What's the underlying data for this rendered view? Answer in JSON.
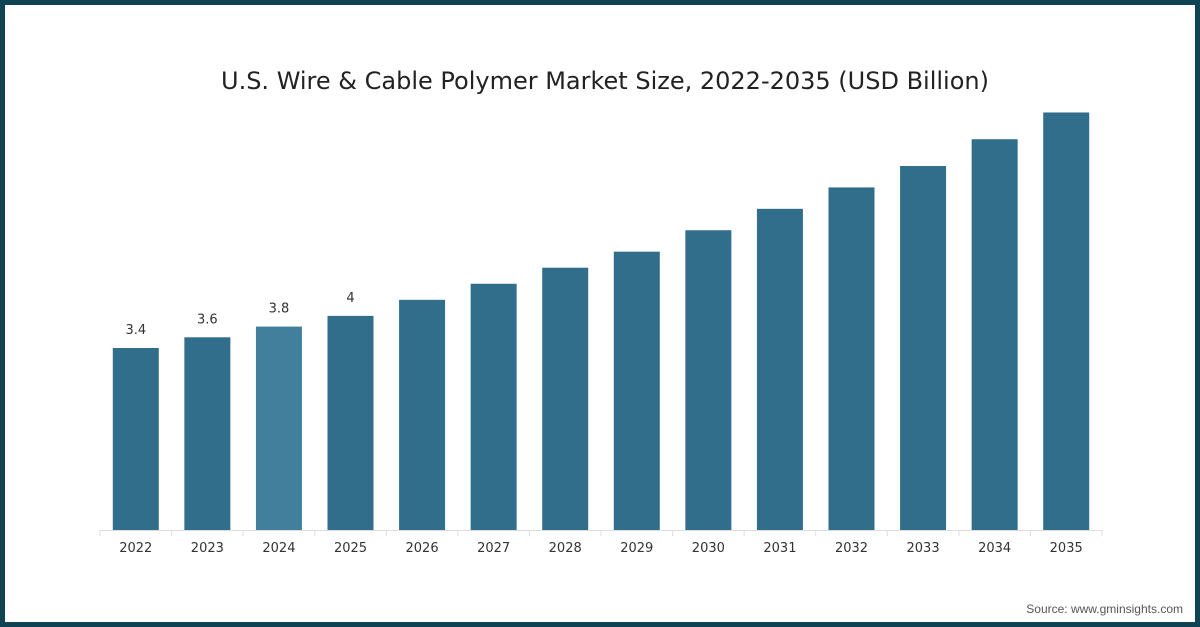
{
  "chart_data": {
    "type": "bar",
    "title": "U.S. Wire & Cable Polymer Market Size, 2022-2035 (USD Billion)",
    "xlabel": "",
    "ylabel": "",
    "categories": [
      "2022",
      "2023",
      "2024",
      "2025",
      "2026",
      "2027",
      "2028",
      "2029",
      "2030",
      "2031",
      "2032",
      "2033",
      "2034",
      "2035"
    ],
    "values": [
      3.4,
      3.6,
      3.8,
      4.0,
      4.3,
      4.6,
      4.9,
      5.2,
      5.6,
      6.0,
      6.4,
      6.8,
      7.3,
      7.8
    ],
    "data_labels": [
      "3.4",
      "3.6",
      "3.8",
      "4",
      "",
      "",
      "",
      "",
      "",
      "",
      "",
      "",
      "",
      ""
    ],
    "ylim": [
      0,
      8.5
    ],
    "grid": false,
    "colors": {
      "bar": "#316e8c",
      "highlight": "#427f9c",
      "highlight_category": "2024"
    }
  },
  "source": "Source: www.gminsights.com"
}
